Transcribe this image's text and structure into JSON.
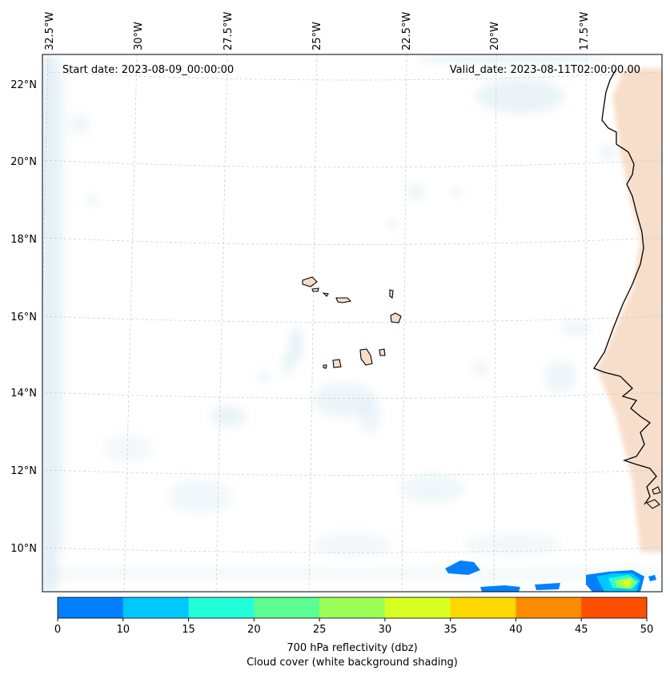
{
  "header": {
    "start_date": "Start date: 2023-08-09_00:00:00",
    "valid_date": "Valid_date: 2023-08-11T02:00:00.00"
  },
  "longitude_labels": [
    "32.5°W",
    "30°W",
    "27.5°W",
    "25°W",
    "22.5°W",
    "20°W",
    "17.5°W"
  ],
  "latitude_labels": [
    "22°N",
    "20°N",
    "18°N",
    "16°N",
    "14°N",
    "12°N",
    "10°N"
  ],
  "colorbar": {
    "ticks": [
      "0",
      "10",
      "15",
      "20",
      "25",
      "30",
      "35",
      "40",
      "45",
      "50"
    ],
    "colors": [
      "#0080ff",
      "#00c8ff",
      "#22ffd8",
      "#5cff90",
      "#9cff58",
      "#d8ff22",
      "#ffd800",
      "#ff8c00",
      "#ff5000"
    ],
    "label_line1": "700 hPa reflectivity (dbz)",
    "label_line2": "Cloud cover (white background shading)"
  },
  "colors": {
    "cloud": "#d6ebf3",
    "land": "#f6d8c2",
    "coast": "#000000",
    "grid": "#c8c8c8"
  }
}
